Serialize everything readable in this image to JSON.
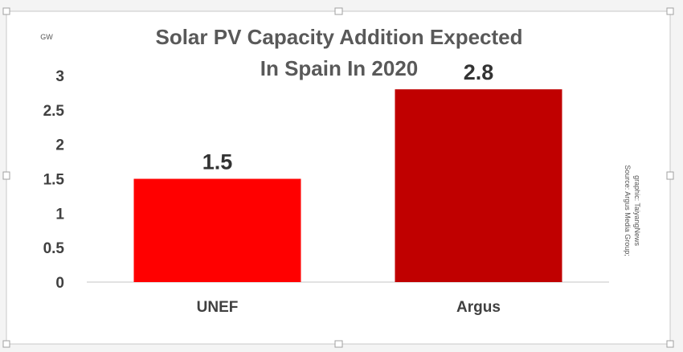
{
  "chart_data": {
    "type": "bar",
    "title_lines": [
      "Solar PV Capacity Addition Expected",
      "In Spain In 2020"
    ],
    "unit_label": "GW",
    "categories": [
      "UNEF",
      "Argus"
    ],
    "values": [
      1.5,
      2.8
    ],
    "value_labels": [
      "1.5",
      "2.8"
    ],
    "bar_colors": [
      "#ff0000",
      "#c00000"
    ],
    "ylim": [
      0,
      3
    ],
    "yticks": [
      "0",
      "0.5",
      "1",
      "1.5",
      "2",
      "2.5",
      "3"
    ],
    "grid": false,
    "source_lines": [
      "Source: Argus Media Group;",
      "graphic: TaiyangNews"
    ]
  }
}
